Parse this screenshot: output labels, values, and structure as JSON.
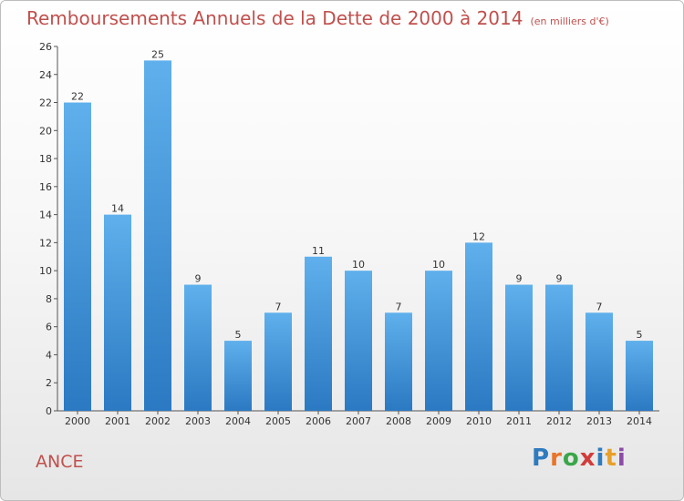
{
  "chart_data": {
    "type": "bar",
    "title": "Remboursements Annuels de la Dette de 2000 à 2014",
    "unit": "(en milliers d'€)",
    "categories": [
      "2000",
      "2001",
      "2002",
      "2003",
      "2004",
      "2005",
      "2006",
      "2007",
      "2008",
      "2009",
      "2010",
      "2011",
      "2012",
      "2013",
      "2014"
    ],
    "values": [
      22,
      14,
      25,
      9,
      5,
      7,
      11,
      10,
      7,
      10,
      12,
      9,
      9,
      7,
      5
    ],
    "ylim": [
      0,
      26
    ],
    "yticks": [
      0,
      2,
      4,
      6,
      8,
      10,
      12,
      14,
      16,
      18,
      20,
      22,
      24,
      26
    ],
    "grid": false,
    "bar_color": "#3b8fd6"
  },
  "place_name": "ANCE",
  "logo": {
    "letters": [
      "P",
      "r",
      "o",
      "x",
      "i",
      "t",
      "i"
    ],
    "colors": [
      "#2e7bbf",
      "#e8742a",
      "#3aa64a",
      "#d33b3b",
      "#2e7bbf",
      "#e8a02a",
      "#8c4ba8"
    ]
  }
}
